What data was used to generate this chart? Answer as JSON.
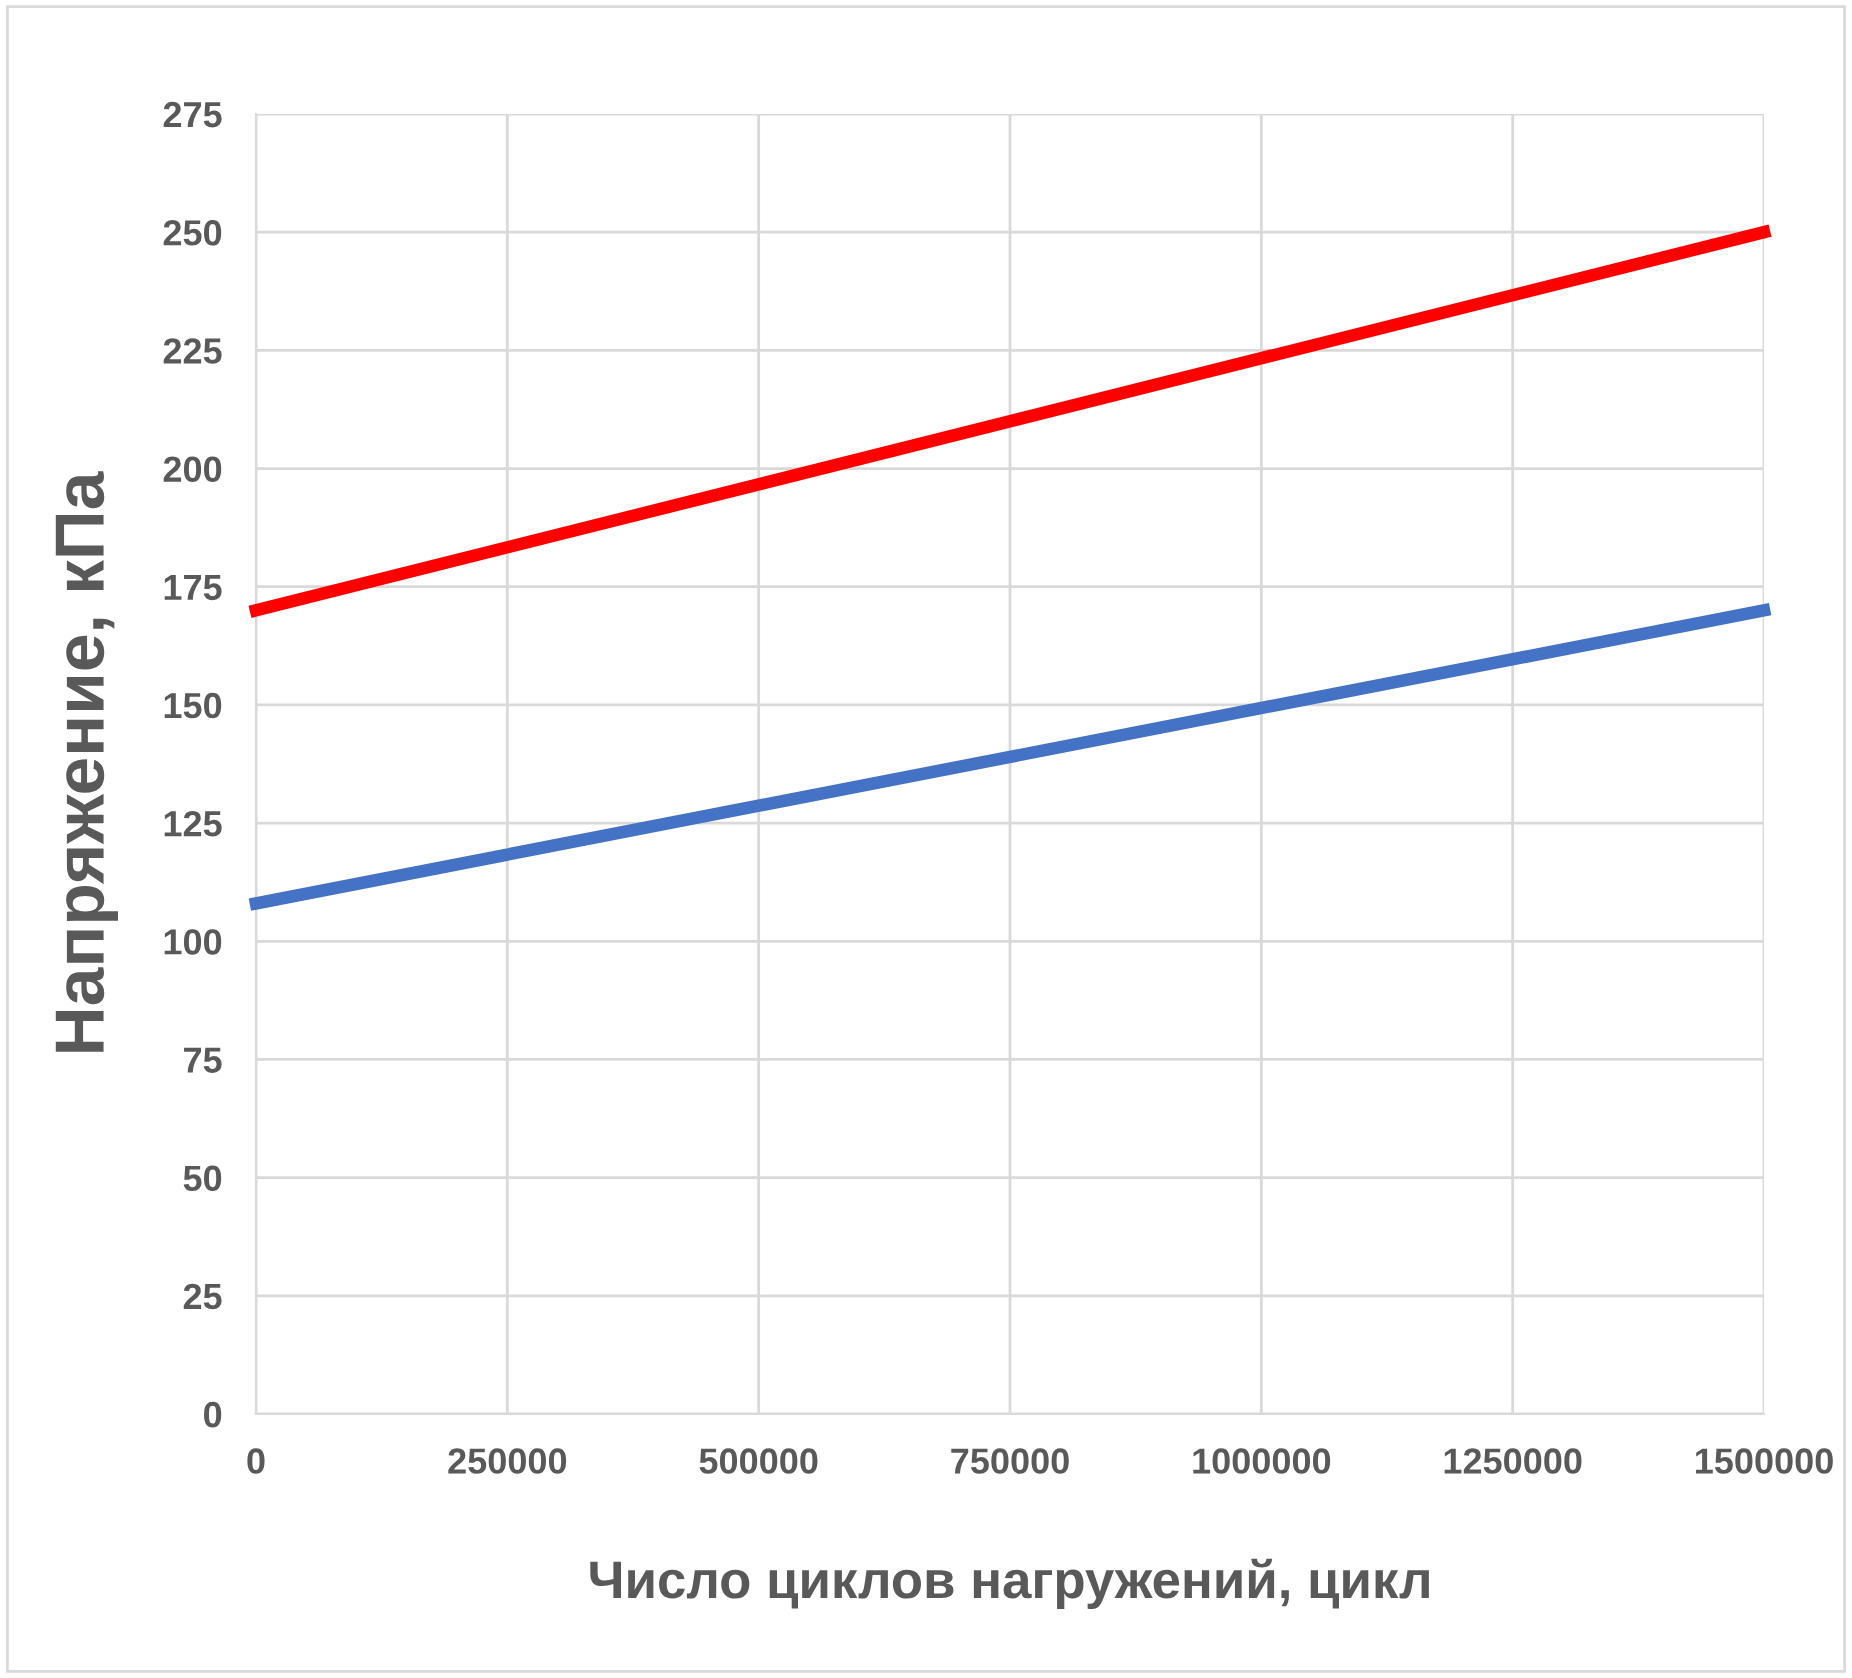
{
  "chart_data": {
    "type": "line",
    "xlabel": "Число циклов нагружений, цикл",
    "ylabel": "Напряжение, кПа",
    "x": [
      0,
      1500000
    ],
    "series": [
      {
        "color": "#ff0000",
        "values": [
          170,
          250
        ]
      },
      {
        "color": "#4472c4",
        "values": [
          108,
          170
        ]
      }
    ],
    "xlim": [
      0,
      1500000
    ],
    "xticks": [
      0,
      250000,
      500000,
      750000,
      1000000,
      1250000,
      1500000
    ],
    "ylim": [
      0,
      275
    ],
    "yticks": [
      0,
      25,
      50,
      75,
      100,
      125,
      150,
      175,
      200,
      225,
      250,
      275
    ],
    "grid": true,
    "marker": "none",
    "line_style": "solid"
  }
}
